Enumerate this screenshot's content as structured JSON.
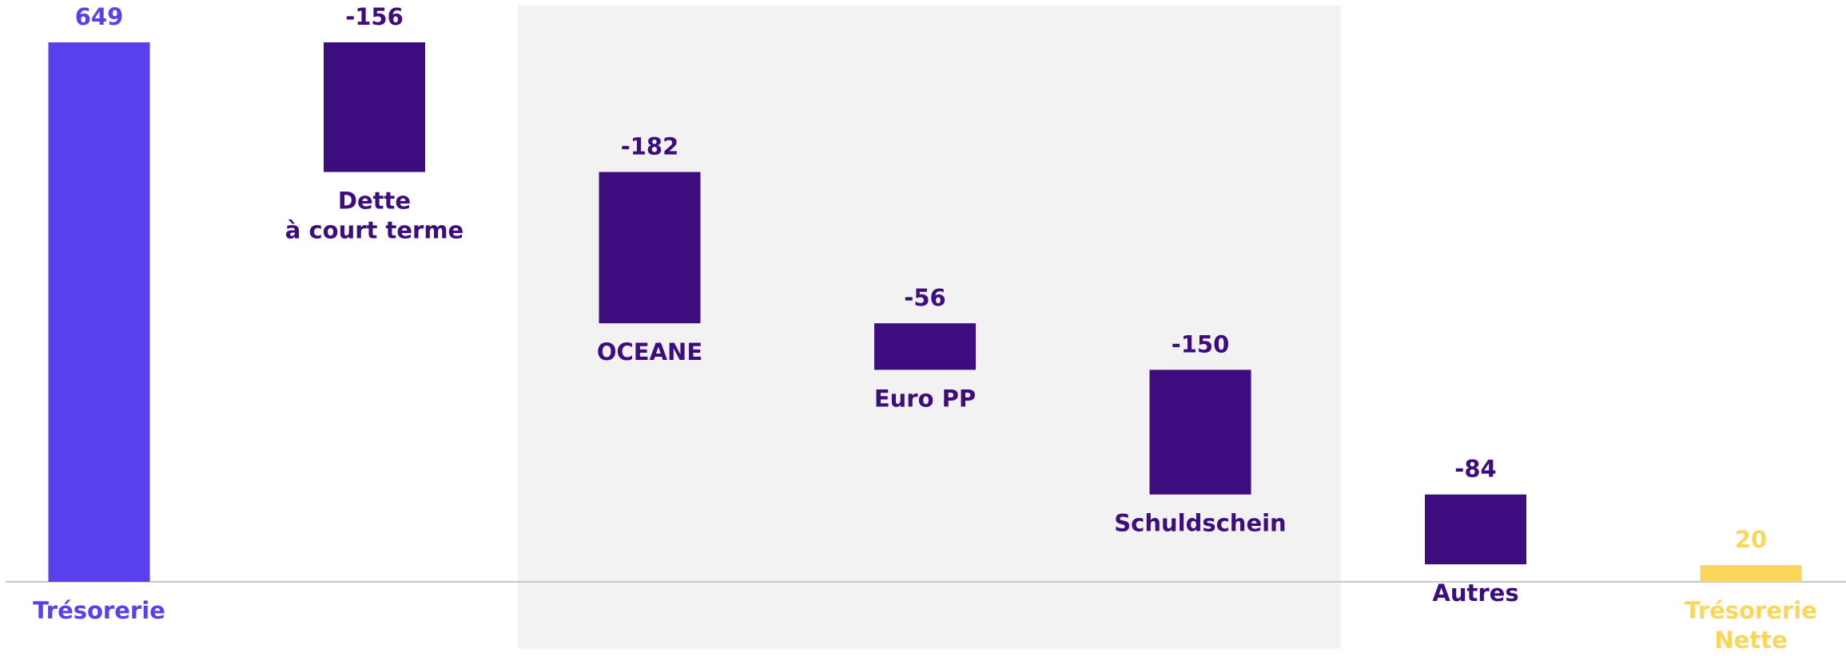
{
  "chart_data": {
    "type": "waterfall",
    "categories": [
      [
        "Trésorerie"
      ],
      [
        "Dette",
        "à court terme"
      ],
      [
        "OCEANE"
      ],
      [
        "Euro PP"
      ],
      [
        "Schuldschein"
      ],
      [
        "Autres"
      ],
      [
        "Trésorerie",
        "Nette"
      ]
    ],
    "values": [
      649,
      -156,
      -182,
      -56,
      -150,
      -84,
      20
    ],
    "measure": [
      "absolute",
      "relative",
      "relative",
      "relative",
      "relative",
      "relative",
      "total"
    ],
    "colors": [
      "#5841ec",
      "#3d0c7e",
      "#3d0c7e",
      "#3d0c7e",
      "#3d0c7e",
      "#3d0c7e",
      "#fad75a"
    ],
    "ylim": [
      0,
      650
    ]
  }
}
